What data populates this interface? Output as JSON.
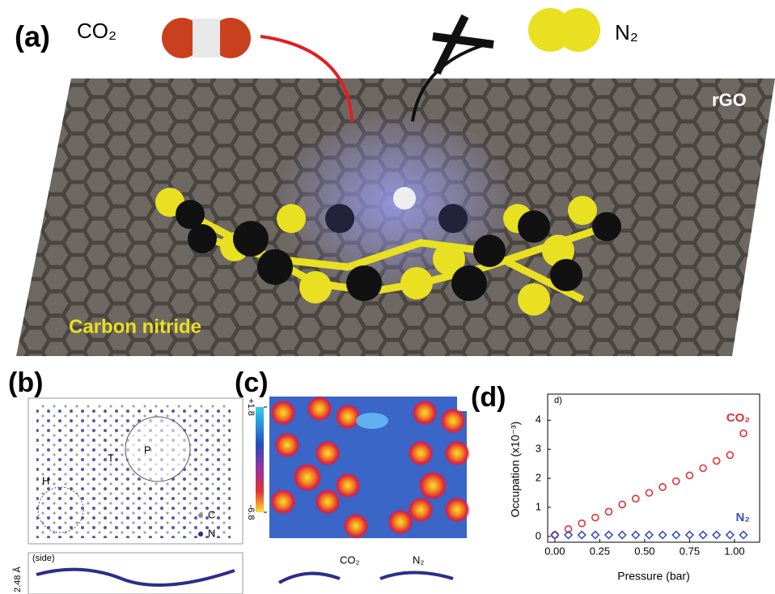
{
  "panel_a": {
    "label": "(a)",
    "co2": "CO₂",
    "n2": "N₂",
    "substrate": "rGO",
    "layer": "Carbon nitride"
  },
  "panel_b": {
    "label": "(b)",
    "sites": [
      "H",
      "T",
      "P"
    ],
    "legend": [
      "C",
      "N"
    ],
    "side": "(side)",
    "height": "2.48 Å"
  },
  "panel_c": {
    "label": "(c)",
    "colorbar_ticks": [
      {
        "value": 1.8,
        "label": "+1.8"
      },
      {
        "value": -6.8,
        "label": "-6.8"
      }
    ],
    "molecules": [
      "CO₂",
      "N₂"
    ]
  },
  "chart_data": {
    "type": "scatter",
    "panel_label": "(d)",
    "corner_label": "d)",
    "x_label": "Pressure (bar)",
    "y_label": "Occupation (x10⁻³)",
    "xlim": [
      -0.04,
      1.14
    ],
    "ylim": [
      -0.2,
      4.9
    ],
    "xticks": [
      {
        "value": 0,
        "label": "0.00"
      },
      {
        "value": 0.25,
        "label": "0.25"
      },
      {
        "value": 0.5,
        "label": "0.50"
      },
      {
        "value": 0.75,
        "label": "0.75"
      },
      {
        "value": 1,
        "label": "1.00"
      }
    ],
    "yticks": [
      0,
      1,
      2,
      3,
      4
    ],
    "series": [
      {
        "name": "CO₂",
        "color": "#e0303a",
        "marker": "circle",
        "x": [
          0,
          0.075,
          0.15,
          0.225,
          0.3,
          0.375,
          0.45,
          0.525,
          0.6,
          0.675,
          0.75,
          0.825,
          0.9,
          0.975,
          1.05
        ],
        "values": [
          0.05,
          0.25,
          0.45,
          0.65,
          0.85,
          1.1,
          1.3,
          1.5,
          1.7,
          1.9,
          2.1,
          2.35,
          2.6,
          2.8,
          3.55
        ]
      },
      {
        "name": "N₂",
        "color": "#3a4fb8",
        "marker": "diamond",
        "x": [
          0,
          0.075,
          0.15,
          0.225,
          0.3,
          0.375,
          0.45,
          0.525,
          0.6,
          0.675,
          0.75,
          0.825,
          0.9,
          0.975,
          1.05
        ],
        "values": [
          0.05,
          0.05,
          0.05,
          0.05,
          0.05,
          0.05,
          0.05,
          0.05,
          0.05,
          0.05,
          0.05,
          0.05,
          0.05,
          0.05,
          0.05
        ]
      }
    ]
  }
}
